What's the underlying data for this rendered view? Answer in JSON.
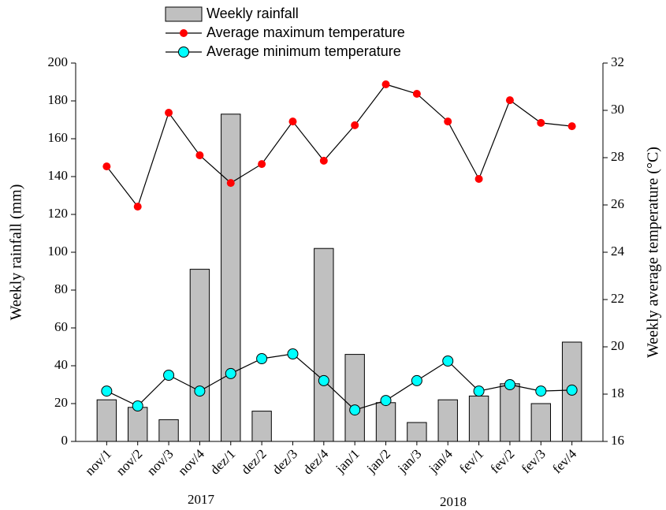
{
  "chart_data": {
    "type": "bar",
    "categories": [
      "nov/1",
      "nov/2",
      "nov/3",
      "nov/4",
      "dez/1",
      "dez/2",
      "dez/3",
      "dez/4",
      "jan/1",
      "jan/2",
      "jan/3",
      "jan/4",
      "fev/1",
      "fev/2",
      "fev/3",
      "fev/4"
    ],
    "series": [
      {
        "name": "Weekly rainfall",
        "type": "bar",
        "color": "#c0c0c0",
        "values": [
          22,
          18,
          11.5,
          91,
          173,
          16,
          0,
          102,
          46,
          20.5,
          10,
          22,
          24,
          30.5,
          20,
          52.5
        ]
      },
      {
        "name": "Average maximum temperature",
        "type": "line",
        "axis": "y2",
        "color": "#ff0000",
        "values": [
          27.63,
          25.93,
          29.9,
          28.1,
          26.93,
          27.73,
          29.53,
          27.87,
          29.37,
          31.1,
          30.7,
          29.53,
          27.1,
          30.43,
          29.47,
          29.33
        ]
      },
      {
        "name": "Average minimum temperature",
        "type": "line",
        "axis": "y2",
        "color": "#00ffff",
        "values": [
          18.13,
          17.5,
          18.8,
          18.13,
          18.87,
          19.5,
          19.7,
          18.57,
          17.33,
          17.73,
          18.57,
          19.4,
          18.13,
          18.4,
          18.13,
          18.17
        ]
      }
    ],
    "ylabel": "Weekly rainfall (mm)",
    "y2label": "Weekly average temperature (°C)",
    "ylim": [
      0,
      200
    ],
    "yticks": [
      0,
      20,
      40,
      60,
      80,
      100,
      120,
      140,
      160,
      180,
      200
    ],
    "y2lim": [
      16,
      32
    ],
    "y2ticks": [
      16,
      18,
      20,
      22,
      24,
      26,
      28,
      30,
      32
    ],
    "annotations": [
      "2017",
      "2018"
    ],
    "grid": false,
    "legend": "top"
  }
}
